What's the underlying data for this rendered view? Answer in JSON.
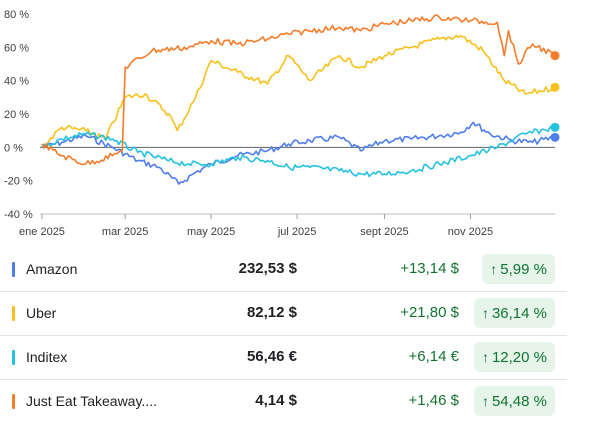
{
  "chart_data": {
    "type": "line",
    "y_axis": {
      "min": -40,
      "max": 80,
      "ticks": [
        "80 %",
        "60 %",
        "40 %",
        "20 %",
        "0 %",
        "-20 %",
        "-40 %"
      ],
      "unit": "%"
    },
    "x_axis": {
      "domain": [
        "2025-01-01",
        "2025-12-31"
      ],
      "tick_labels": [
        "ene 2025",
        "mar 2025",
        "may 2025",
        "jul 2025",
        "sept 2025",
        "nov 2025"
      ]
    },
    "baseline": 0,
    "series": [
      {
        "name": "Amazon",
        "color": "#4f7ee8",
        "x": [
          "2025-01-01",
          "2025-01-15",
          "2025-02-01",
          "2025-02-20",
          "2025-03-10",
          "2025-03-25",
          "2025-04-08",
          "2025-04-20",
          "2025-05-01",
          "2025-05-20",
          "2025-06-10",
          "2025-06-25",
          "2025-07-10",
          "2025-07-31",
          "2025-08-15",
          "2025-09-01",
          "2025-09-20",
          "2025-10-10",
          "2025-10-25",
          "2025-11-03",
          "2025-11-15",
          "2025-12-01",
          "2025-12-15",
          "2025-12-31"
        ],
        "y": [
          0,
          3,
          7,
          0,
          -8,
          -12,
          -22,
          -15,
          -10,
          -5,
          -2,
          2,
          4,
          6,
          -2,
          4,
          5,
          7,
          9,
          15,
          8,
          4,
          3,
          6
        ]
      },
      {
        "name": "Uber",
        "color": "#f9c01c",
        "x": [
          "2025-01-01",
          "2025-01-15",
          "2025-02-01",
          "2025-02-15",
          "2025-03-01",
          "2025-03-15",
          "2025-04-01",
          "2025-04-07",
          "2025-04-20",
          "2025-05-01",
          "2025-05-20",
          "2025-06-10",
          "2025-06-25",
          "2025-07-10",
          "2025-07-31",
          "2025-08-15",
          "2025-09-01",
          "2025-09-20",
          "2025-10-10",
          "2025-10-25",
          "2025-11-10",
          "2025-11-25",
          "2025-12-10",
          "2025-12-31"
        ],
        "y": [
          0,
          12,
          10,
          5,
          30,
          32,
          20,
          10,
          30,
          52,
          45,
          38,
          55,
          40,
          55,
          48,
          55,
          60,
          65,
          67,
          58,
          40,
          32,
          36
        ]
      },
      {
        "name": "Inditex",
        "color": "#24c1e0",
        "x": [
          "2025-01-01",
          "2025-01-15",
          "2025-02-01",
          "2025-02-20",
          "2025-03-10",
          "2025-04-01",
          "2025-04-15",
          "2025-05-01",
          "2025-05-20",
          "2025-06-10",
          "2025-06-25",
          "2025-07-10",
          "2025-07-31",
          "2025-08-15",
          "2025-09-01",
          "2025-09-20",
          "2025-10-10",
          "2025-11-01",
          "2025-11-20",
          "2025-12-10",
          "2025-12-31"
        ],
        "y": [
          0,
          5,
          8,
          5,
          -3,
          -8,
          -10,
          -10,
          -6,
          -8,
          -12,
          -12,
          -14,
          -16,
          -16,
          -14,
          -10,
          -5,
          0,
          8,
          12
        ]
      },
      {
        "name": "Just Eat Takeaway....",
        "color": "#f57c2b",
        "x": [
          "2025-01-01",
          "2025-01-15",
          "2025-02-01",
          "2025-02-20",
          "2025-02-27",
          "2025-03-01",
          "2025-03-20",
          "2025-04-15",
          "2025-05-01",
          "2025-05-20",
          "2025-06-10",
          "2025-06-25",
          "2025-07-10",
          "2025-07-31",
          "2025-08-15",
          "2025-09-01",
          "2025-09-20",
          "2025-10-10",
          "2025-11-01",
          "2025-11-20",
          "2025-11-25",
          "2025-11-28",
          "2025-12-05",
          "2025-12-15",
          "2025-12-31"
        ],
        "y": [
          2,
          -5,
          -10,
          -5,
          -2,
          48,
          58,
          60,
          64,
          62,
          65,
          68,
          70,
          72,
          70,
          74,
          76,
          78,
          76,
          75,
          55,
          70,
          50,
          62,
          55
        ]
      }
    ]
  },
  "rows": [
    {
      "name": "Amazon",
      "color": "#4f7ee8",
      "price": "232,53 $",
      "change": "+13,14 $",
      "arrow": "↑",
      "pct": "5,99 %"
    },
    {
      "name": "Uber",
      "color": "#f9c01c",
      "price": "82,12 $",
      "change": "+21,80 $",
      "arrow": "↑",
      "pct": "36,14 %"
    },
    {
      "name": "Inditex",
      "color": "#24c1e0",
      "price": "56,46 €",
      "change": "+6,14 €",
      "arrow": "↑",
      "pct": "12,20 %"
    },
    {
      "name": "Just Eat Takeaway....",
      "color": "#f57c2b",
      "price": "4,14 $",
      "change": "+1,46 $",
      "arrow": "↑",
      "pct": "54,48 %"
    }
  ]
}
